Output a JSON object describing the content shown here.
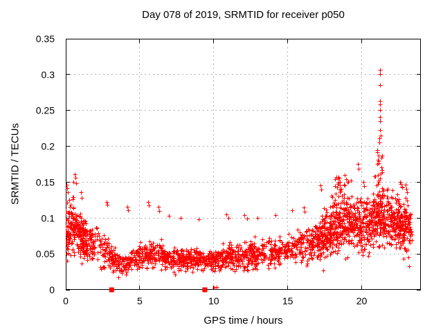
{
  "chart_data": {
    "type": "scatter",
    "title": "Day 078 of 2019, SRMTID for receiver p050",
    "xlabel": "GPS time / hours",
    "ylabel": "SRMTID / TECUs",
    "xlim": [
      0,
      24
    ],
    "ylim": [
      0,
      0.35
    ],
    "xtick_values": [
      0,
      5,
      10,
      15,
      20
    ],
    "xtick_labels": [
      "0",
      "5",
      "10",
      "15",
      "20"
    ],
    "ytick_values": [
      0,
      0.05,
      0.1,
      0.15,
      0.2,
      0.25,
      0.3,
      0.35
    ],
    "ytick_labels": [
      "0",
      "0.05",
      "0.1",
      "0.15",
      "0.2",
      "0.25",
      "0.3",
      "0.35"
    ],
    "grid": true,
    "legend": "none",
    "marker": "plus",
    "marker_color": "#ff0000",
    "grid_color": "#b0b0b0",
    "axis_color": "#000000",
    "background": "#ffffff",
    "seed": 20190078,
    "band_knots": [
      [
        0,
        0.085,
        0.052
      ],
      [
        0.5,
        0.092,
        0.056
      ],
      [
        1,
        0.078,
        0.047
      ],
      [
        1.5,
        0.068,
        0.04
      ],
      [
        2,
        0.06,
        0.036
      ],
      [
        2.5,
        0.055,
        0.034
      ],
      [
        3,
        0.046,
        0.028
      ],
      [
        3.5,
        0.038,
        0.022
      ],
      [
        4,
        0.036,
        0.02
      ],
      [
        4.5,
        0.04,
        0.022
      ],
      [
        5,
        0.046,
        0.024
      ],
      [
        5.5,
        0.048,
        0.025
      ],
      [
        6,
        0.05,
        0.025
      ],
      [
        6.5,
        0.048,
        0.025
      ],
      [
        7,
        0.045,
        0.024
      ],
      [
        7.5,
        0.042,
        0.023
      ],
      [
        8,
        0.04,
        0.022
      ],
      [
        9,
        0.042,
        0.022
      ],
      [
        9.5,
        0.039,
        0.021
      ],
      [
        10,
        0.042,
        0.022
      ],
      [
        10.5,
        0.044,
        0.023
      ],
      [
        11,
        0.046,
        0.024
      ],
      [
        12,
        0.046,
        0.024
      ],
      [
        12.5,
        0.048,
        0.025
      ],
      [
        13,
        0.05,
        0.026
      ],
      [
        14,
        0.05,
        0.026
      ],
      [
        14.5,
        0.052,
        0.027
      ],
      [
        15,
        0.055,
        0.028
      ],
      [
        15.5,
        0.058,
        0.03
      ],
      [
        16,
        0.06,
        0.032
      ],
      [
        16.5,
        0.063,
        0.035
      ],
      [
        17,
        0.068,
        0.038
      ],
      [
        17.5,
        0.076,
        0.043
      ],
      [
        18,
        0.086,
        0.05
      ],
      [
        18.5,
        0.096,
        0.054
      ],
      [
        19,
        0.096,
        0.054
      ],
      [
        19.5,
        0.09,
        0.052
      ],
      [
        20,
        0.088,
        0.05
      ],
      [
        20.5,
        0.092,
        0.052
      ],
      [
        21,
        0.1,
        0.054
      ],
      [
        21.5,
        0.1,
        0.052
      ],
      [
        22,
        0.095,
        0.052
      ],
      [
        22.5,
        0.09,
        0.052
      ],
      [
        23,
        0.086,
        0.052
      ],
      [
        23.4,
        0.082,
        0.05
      ]
    ],
    "density_clusters": [
      {
        "x0": 0,
        "x1": 23.4,
        "n": 1900
      },
      {
        "x0": 0,
        "x1": 1.5,
        "n": 140
      },
      {
        "x0": 17,
        "x1": 23.3,
        "n": 430
      },
      {
        "x0": 21.05,
        "x1": 21.45,
        "n": 26,
        "ymin": 0.1,
        "ymax": 0.2
      },
      {
        "x0": 18.2,
        "x1": 19.2,
        "n": 22,
        "ymin": 0.11,
        "ymax": 0.158
      }
    ],
    "outliers": [
      [
        0.05,
        0.146
      ],
      [
        0.1,
        0.141
      ],
      [
        0.15,
        0.135
      ],
      [
        0.55,
        0.15
      ],
      [
        0.62,
        0.161
      ],
      [
        0.68,
        0.156
      ],
      [
        0.72,
        0.148
      ],
      [
        1.05,
        0.135
      ],
      [
        1.1,
        0.128
      ],
      [
        2.8,
        0.122
      ],
      [
        2.85,
        0.118
      ],
      [
        4.2,
        0.115
      ],
      [
        4.25,
        0.11
      ],
      [
        5.6,
        0.122
      ],
      [
        5.65,
        0.117
      ],
      [
        6.3,
        0.115
      ],
      [
        6.35,
        0.109
      ],
      [
        7.0,
        0.103
      ],
      [
        7.8,
        0.1
      ],
      [
        9.0,
        0.098
      ],
      [
        10.9,
        0.105
      ],
      [
        11.0,
        0.1
      ],
      [
        12.1,
        0.104
      ],
      [
        12.3,
        0.099
      ],
      [
        13.0,
        0.1
      ],
      [
        14.2,
        0.104
      ],
      [
        15.3,
        0.11
      ],
      [
        16.1,
        0.114
      ],
      [
        16.15,
        0.108
      ],
      [
        17.25,
        0.145
      ],
      [
        17.3,
        0.139
      ],
      [
        18.0,
        0.131
      ],
      [
        18.4,
        0.155
      ],
      [
        18.45,
        0.149
      ],
      [
        18.9,
        0.16
      ],
      [
        18.95,
        0.154
      ],
      [
        19.3,
        0.152
      ],
      [
        19.75,
        0.175
      ],
      [
        19.8,
        0.168
      ],
      [
        20.15,
        0.15
      ],
      [
        20.2,
        0.144
      ],
      [
        20.9,
        0.158
      ],
      [
        21.2,
        0.205
      ],
      [
        21.22,
        0.211
      ],
      [
        21.3,
        0.215
      ],
      [
        21.25,
        0.222
      ],
      [
        21.24,
        0.235
      ],
      [
        21.26,
        0.241
      ],
      [
        21.25,
        0.25
      ],
      [
        21.28,
        0.258
      ],
      [
        21.27,
        0.263
      ],
      [
        21.26,
        0.285
      ],
      [
        21.25,
        0.3
      ],
      [
        21.28,
        0.306
      ],
      [
        21.1,
        0.181
      ],
      [
        21.15,
        0.176
      ],
      [
        21.35,
        0.17
      ],
      [
        22.6,
        0.15
      ],
      [
        22.65,
        0.147
      ],
      [
        22.75,
        0.142
      ],
      [
        23.0,
        0.146
      ],
      [
        23.05,
        0.14
      ],
      [
        23.1,
        0.135
      ],
      [
        23.2,
        0.045
      ],
      [
        23.25,
        0.032
      ],
      [
        10.05,
        0.002
      ],
      [
        10.2,
        0.003
      ]
    ],
    "baseline_squares": [
      3.1,
      9.4
    ]
  }
}
